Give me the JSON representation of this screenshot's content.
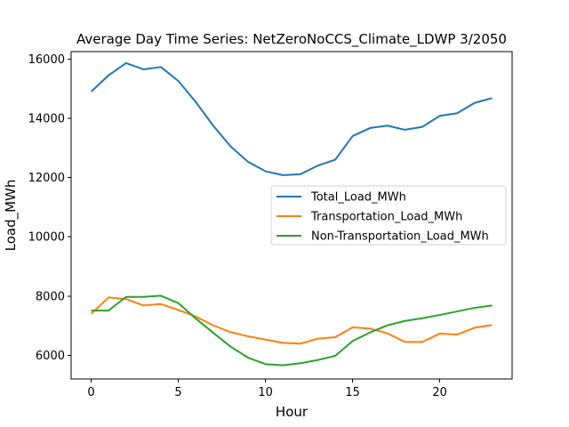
{
  "chart_data": {
    "type": "line",
    "title": "Average Day Time Series: NetZeroNoCCS_Climate_LDWP 3/2050",
    "xlabel": "Hour",
    "ylabel": "Load_MWh",
    "x": [
      0,
      1,
      2,
      3,
      4,
      5,
      6,
      7,
      8,
      9,
      10,
      11,
      12,
      13,
      14,
      15,
      16,
      17,
      18,
      19,
      20,
      21,
      22,
      23
    ],
    "xlim": [
      -1.15,
      24.15
    ],
    "ylim": [
      5200,
      16250
    ],
    "xticks": [
      0,
      5,
      10,
      15,
      20
    ],
    "yticks": [
      6000,
      8000,
      10000,
      12000,
      14000,
      16000
    ],
    "grid": false,
    "legend_position": "center-right",
    "series": [
      {
        "name": "Total_Load_MWh",
        "color": "#1f77b4",
        "values": [
          14900,
          15450,
          15860,
          15650,
          15730,
          15260,
          14550,
          13750,
          13050,
          12530,
          12210,
          12080,
          12110,
          12400,
          12600,
          13400,
          13670,
          13750,
          13610,
          13710,
          14080,
          14170,
          14520,
          14680
        ]
      },
      {
        "name": "Transportation_Load_MWh",
        "color": "#ff7f0e",
        "values": [
          7400,
          7950,
          7900,
          7680,
          7730,
          7530,
          7310,
          7010,
          6780,
          6640,
          6530,
          6420,
          6390,
          6560,
          6610,
          6940,
          6900,
          6740,
          6450,
          6450,
          6730,
          6700,
          6930,
          7020
        ]
      },
      {
        "name": "Non-Transportation_Load_MWh",
        "color": "#2ca02c",
        "values": [
          7510,
          7510,
          7970,
          7970,
          8010,
          7760,
          7240,
          6760,
          6290,
          5920,
          5700,
          5660,
          5730,
          5840,
          5980,
          6480,
          6770,
          7010,
          7160,
          7250,
          7360,
          7480,
          7600,
          7680
        ]
      }
    ]
  }
}
